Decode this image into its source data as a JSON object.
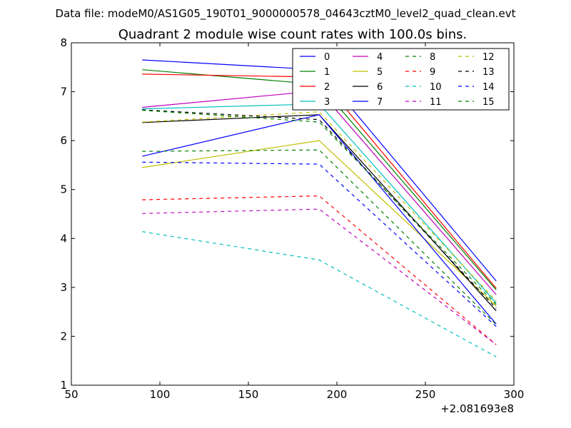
{
  "header": {
    "data_file": "Data file: modeM0/AS1G05_190T01_9000000578_04643cztM0_level2_quad_clean.evt"
  },
  "chart_data": {
    "type": "line",
    "title": "Quadrant 2 module wise count rates with 100.0s bins.",
    "xlabel": "",
    "ylabel": "",
    "x_offset_label": "+2.081693e8",
    "xlim": [
      50,
      300
    ],
    "ylim": [
      1,
      8
    ],
    "xticks": [
      50,
      100,
      150,
      200,
      250,
      300
    ],
    "yticks": [
      1,
      2,
      3,
      4,
      5,
      6,
      7,
      8
    ],
    "x": [
      90,
      190,
      290
    ],
    "legend_position": "top-right",
    "legend_columns": 4,
    "series": [
      {
        "name": "0",
        "color": "#0000ff",
        "style": "solid",
        "values": [
          7.65,
          7.45,
          3.13
        ]
      },
      {
        "name": "1",
        "color": "#008000",
        "style": "solid",
        "values": [
          7.45,
          7.15,
          2.95
        ]
      },
      {
        "name": "2",
        "color": "#ff0000",
        "style": "solid",
        "values": [
          7.36,
          7.3,
          2.98
        ]
      },
      {
        "name": "3",
        "color": "#00bfbf",
        "style": "solid",
        "values": [
          6.65,
          6.75,
          2.68
        ]
      },
      {
        "name": "4",
        "color": "#bf00bf",
        "style": "solid",
        "values": [
          6.68,
          7.02,
          2.85
        ]
      },
      {
        "name": "5",
        "color": "#bfbf00",
        "style": "solid",
        "values": [
          5.45,
          6.0,
          2.62
        ]
      },
      {
        "name": "6",
        "color": "#000000",
        "style": "solid",
        "values": [
          6.37,
          6.53,
          2.52
        ]
      },
      {
        "name": "7",
        "color": "#0000ff",
        "style": "solid",
        "values": [
          5.68,
          6.53,
          2.25
        ]
      },
      {
        "name": "8",
        "color": "#008000",
        "style": "dashed",
        "values": [
          5.78,
          5.81,
          2.24
        ]
      },
      {
        "name": "9",
        "color": "#ff0000",
        "style": "dashed",
        "values": [
          4.79,
          4.87,
          1.83
        ]
      },
      {
        "name": "10",
        "color": "#00bfbf",
        "style": "dashed",
        "values": [
          4.14,
          3.56,
          1.58
        ]
      },
      {
        "name": "11",
        "color": "#bf00bf",
        "style": "dashed",
        "values": [
          4.51,
          4.6,
          1.83
        ]
      },
      {
        "name": "12",
        "color": "#bfbf00",
        "style": "dashed",
        "values": [
          6.38,
          6.59,
          2.72
        ]
      },
      {
        "name": "13",
        "color": "#000000",
        "style": "dashed",
        "values": [
          6.63,
          6.43,
          2.57
        ]
      },
      {
        "name": "14",
        "color": "#0000ff",
        "style": "dashed",
        "values": [
          5.56,
          5.52,
          2.2
        ]
      },
      {
        "name": "15",
        "color": "#008000",
        "style": "dashed",
        "values": [
          6.62,
          6.38,
          2.65
        ]
      }
    ]
  }
}
